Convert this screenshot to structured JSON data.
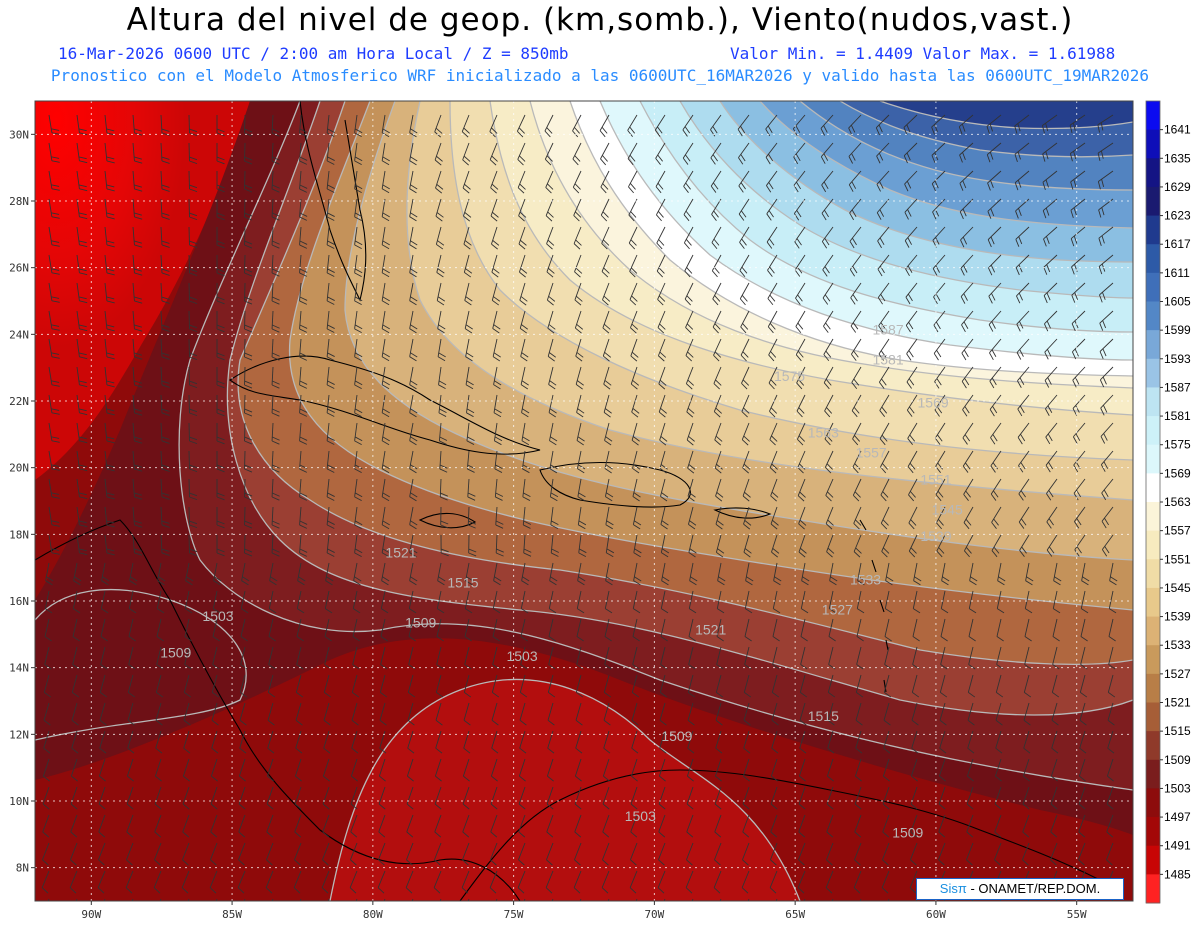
{
  "header": {
    "title": "Altura del nivel de geop. (km,somb.), Viento(nudos,vast.)",
    "date_line": "16-Mar-2026  0600 UTC / 2:00 am Hora Local / Z = 850mb",
    "minmax_line": "Valor Min. = 1.4409  Valor Max. = 1.61988",
    "model_line": "Pronostico con el Modelo Atmosferico WRF inicializado a las 0600UTC_16MAR2026 y valido hasta las  0600UTC_19MAR2026"
  },
  "map": {
    "lon_range": [
      -92,
      -53
    ],
    "lat_range": [
      7,
      31
    ],
    "lat_labels": [
      {
        "lat": 30,
        "text": "30N"
      },
      {
        "lat": 28,
        "text": "28N"
      },
      {
        "lat": 26,
        "text": "26N"
      },
      {
        "lat": 24,
        "text": "24N"
      },
      {
        "lat": 22,
        "text": "22N"
      },
      {
        "lat": 20,
        "text": "20N"
      },
      {
        "lat": 18,
        "text": "18N"
      },
      {
        "lat": 16,
        "text": "16N"
      },
      {
        "lat": 14,
        "text": "14N"
      },
      {
        "lat": 12,
        "text": "12N"
      },
      {
        "lat": 10,
        "text": "10N"
      },
      {
        "lat": 8,
        "text": "8N"
      }
    ],
    "lon_labels": [
      {
        "lon": -90,
        "text": "90W"
      },
      {
        "lon": -85,
        "text": "85W"
      },
      {
        "lon": -80,
        "text": "80W"
      },
      {
        "lon": -75,
        "text": "75W"
      },
      {
        "lon": -70,
        "text": "70W"
      },
      {
        "lon": -65,
        "text": "65W"
      },
      {
        "lon": -60,
        "text": "60W"
      },
      {
        "lon": -55,
        "text": "55W"
      }
    ],
    "contour_labels": [
      {
        "text": "1587",
        "lon": -61.7,
        "lat": 24.0
      },
      {
        "text": "1581",
        "lon": -61.7,
        "lat": 23.1
      },
      {
        "text": "1575",
        "lon": -65.2,
        "lat": 22.6
      },
      {
        "text": "1569",
        "lon": -60.1,
        "lat": 21.8
      },
      {
        "text": "1563",
        "lon": -64.0,
        "lat": 20.9
      },
      {
        "text": "1557",
        "lon": -62.3,
        "lat": 20.3
      },
      {
        "text": "1551",
        "lon": -60.0,
        "lat": 19.5
      },
      {
        "text": "1545",
        "lon": -59.6,
        "lat": 18.6
      },
      {
        "text": "1539",
        "lon": -60.0,
        "lat": 17.8
      },
      {
        "text": "1533",
        "lon": -62.5,
        "lat": 16.5
      },
      {
        "text": "1527",
        "lon": -63.5,
        "lat": 15.6
      },
      {
        "text": "1521",
        "lon": -79.0,
        "lat": 17.3
      },
      {
        "text": "1521",
        "lon": -68.0,
        "lat": 15.0
      },
      {
        "text": "1515",
        "lon": -76.8,
        "lat": 16.4
      },
      {
        "text": "1515",
        "lon": -64.0,
        "lat": 12.4
      },
      {
        "text": "1509",
        "lon": -78.3,
        "lat": 15.2
      },
      {
        "text": "1509",
        "lon": -87.0,
        "lat": 14.3
      },
      {
        "text": "1509",
        "lon": -69.2,
        "lat": 11.8
      },
      {
        "text": "1509",
        "lon": -61.0,
        "lat": 8.9
      },
      {
        "text": "1503",
        "lon": -85.5,
        "lat": 15.4
      },
      {
        "text": "1503",
        "lon": -74.7,
        "lat": 14.2
      },
      {
        "text": "1503",
        "lon": -70.5,
        "lat": 9.4
      }
    ]
  },
  "colorbar": {
    "levels": [
      "1641",
      "1635",
      "1629",
      "1623",
      "1617",
      "1611",
      "1605",
      "1599",
      "1593",
      "1587",
      "1581",
      "1575",
      "1569",
      "1563",
      "1557",
      "1551",
      "1545",
      "1539",
      "1533",
      "1527",
      "1521",
      "1515",
      "1509",
      "1503",
      "1497",
      "1491",
      "1485"
    ],
    "colors": [
      "#0b0bf0",
      "#0e0eb8",
      "#141484",
      "#1a1a70",
      "#1f3a8e",
      "#2d5aa7",
      "#3f6fb9",
      "#5387c6",
      "#79a8d8",
      "#9ac4e6",
      "#bde4f2",
      "#cdf1f8",
      "#dcf7fb",
      "#ffffff",
      "#fbf4d9",
      "#f7ebbf",
      "#f0dca6",
      "#e8c98b",
      "#dcb275",
      "#c99a5c",
      "#b87e47",
      "#a65e37",
      "#8f3a2a",
      "#7a1d1d",
      "#8d0c0c",
      "#a30707",
      "#c80505",
      "#ff2222"
    ]
  },
  "credit": {
    "logo_text": "Sisπ",
    "org_text": "- ONAMET/REP.DOM."
  }
}
